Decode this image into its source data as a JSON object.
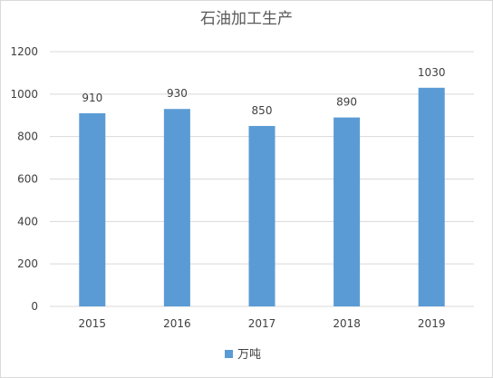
{
  "chart_data": {
    "type": "bar",
    "title": "石油加工生产",
    "xlabel": "",
    "ylabel": "",
    "categories": [
      "2015",
      "2016",
      "2017",
      "2018",
      "2019"
    ],
    "series": [
      {
        "name": "万吨",
        "values": [
          910,
          930,
          850,
          890,
          1030
        ],
        "color": "#5b9bd5"
      }
    ],
    "ylim": [
      0,
      1200
    ],
    "yticks": [
      0,
      200,
      400,
      600,
      800,
      1000,
      1200
    ],
    "grid": true,
    "legend": "bottom-center",
    "data_labels": true
  }
}
